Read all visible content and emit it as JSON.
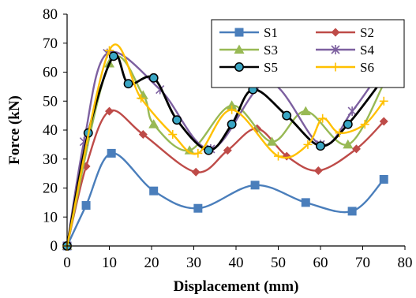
{
  "chart_data": {
    "type": "line",
    "title": "",
    "xlabel": "Displacement  (mm)",
    "ylabel": "Force  (kN)",
    "xlim": [
      0,
      80
    ],
    "ylim": [
      0,
      80
    ],
    "xticks": [
      "0",
      "10",
      "20",
      "30",
      "40",
      "50",
      "60",
      "70",
      "80"
    ],
    "yticks": [
      "0",
      "10",
      "20",
      "30",
      "40",
      "50",
      "60",
      "70",
      "80"
    ],
    "grid": false,
    "legend_position": "top-right",
    "series": [
      {
        "name": "S1",
        "color": "#4a7ebb",
        "marker": "square",
        "x": [
          0,
          4.5,
          10.5,
          20.5,
          31,
          44.5,
          56.5,
          67.5,
          75
        ],
        "y": [
          0,
          14,
          32,
          19,
          13,
          21,
          15,
          12,
          23
        ]
      },
      {
        "name": "S2",
        "color": "#be4b48",
        "marker": "diamond",
        "x": [
          0,
          4.5,
          10,
          18,
          30.5,
          38,
          45,
          52,
          59.5,
          68.5,
          75
        ],
        "y": [
          0,
          27.5,
          46.5,
          38.5,
          25.5,
          33,
          40.5,
          31,
          26,
          33.5,
          43
        ]
      },
      {
        "name": "S3",
        "color": "#98b954",
        "marker": "triangle",
        "x": [
          0,
          10,
          18,
          20.5,
          29,
          39,
          48.5,
          56.5,
          66.5,
          75
        ],
        "y": [
          0,
          63,
          52,
          42,
          33,
          48.5,
          36,
          46.5,
          35,
          56
        ]
      },
      {
        "name": "S4",
        "color": "#7d60a0",
        "marker": "star",
        "x": [
          0,
          4,
          9.5,
          22,
          34,
          47.5,
          60,
          67.5,
          75
        ],
        "y": [
          0,
          36,
          66.5,
          54,
          33.5,
          56.5,
          35,
          46.5,
          62
        ]
      },
      {
        "name": "S5",
        "color": "#000000",
        "marker": "circle-teal",
        "x": [
          0,
          5,
          11,
          14.5,
          20.5,
          26,
          33.5,
          39,
          44,
          52,
          60,
          66.5,
          75
        ],
        "y": [
          0,
          39,
          65.5,
          56,
          58,
          43.5,
          33,
          42,
          54,
          45,
          34.5,
          42,
          58
        ]
      },
      {
        "name": "S6",
        "color": "#ffc000",
        "marker": "plus",
        "x": [
          0,
          10,
          17.5,
          25,
          31,
          39,
          50,
          57,
          60.5,
          64.5,
          70.5,
          75
        ],
        "y": [
          0,
          67.5,
          51,
          38.5,
          32,
          47,
          31,
          35,
          44,
          39,
          42,
          50
        ]
      }
    ]
  }
}
